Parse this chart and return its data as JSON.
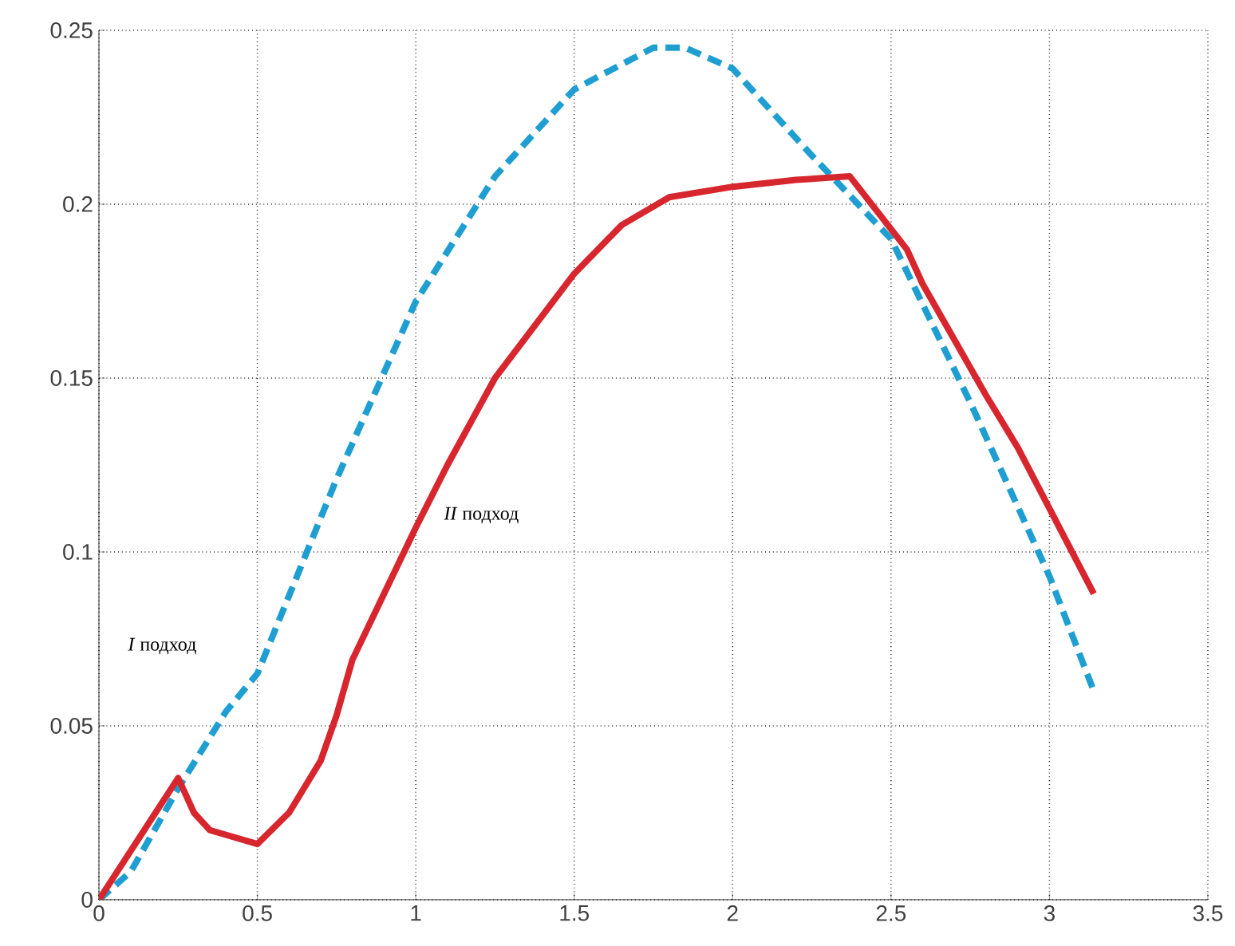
{
  "chart_data": {
    "type": "line",
    "xlim": [
      0,
      3.5
    ],
    "ylim": [
      0,
      0.25
    ],
    "xticks": [
      0,
      0.5,
      1,
      1.5,
      2,
      2.5,
      3,
      3.5
    ],
    "yticks": [
      0,
      0.05,
      0.1,
      0.15,
      0.2,
      0.25
    ],
    "grid": true,
    "series": [
      {
        "color": "#1f9ed1",
        "line_style": "dashed",
        "x": [
          0,
          0.1,
          0.25,
          0.4,
          0.5,
          0.75,
          1,
          1.25,
          1.5,
          1.75,
          1.85,
          2,
          2.25,
          2.5,
          2.75,
          3,
          3.14
        ],
        "values": [
          0,
          0.008,
          0.032,
          0.054,
          0.065,
          0.121,
          0.172,
          0.208,
          0.233,
          0.245,
          0.245,
          0.239,
          0.214,
          0.19,
          0.143,
          0.093,
          0.06
        ]
      },
      {
        "color": "#d7262e",
        "line_style": "solid",
        "x": [
          0,
          0.25,
          0.3,
          0.35,
          0.5,
          0.6,
          0.7,
          0.75,
          0.8,
          0.9,
          1.0,
          1.1,
          1.25,
          1.5,
          1.65,
          1.8,
          2,
          2.2,
          2.37,
          2.55,
          2.6,
          2.8,
          2.9,
          3.14
        ],
        "values": [
          0,
          0.035,
          0.025,
          0.02,
          0.016,
          0.025,
          0.04,
          0.053,
          0.069,
          0.088,
          0.107,
          0.125,
          0.15,
          0.18,
          0.194,
          0.202,
          0.205,
          0.207,
          0.208,
          0.187,
          0.177,
          0.145,
          0.13,
          0.088
        ]
      }
    ],
    "annotations": [
      "*I* подход",
      "*II* подход"
    ]
  }
}
